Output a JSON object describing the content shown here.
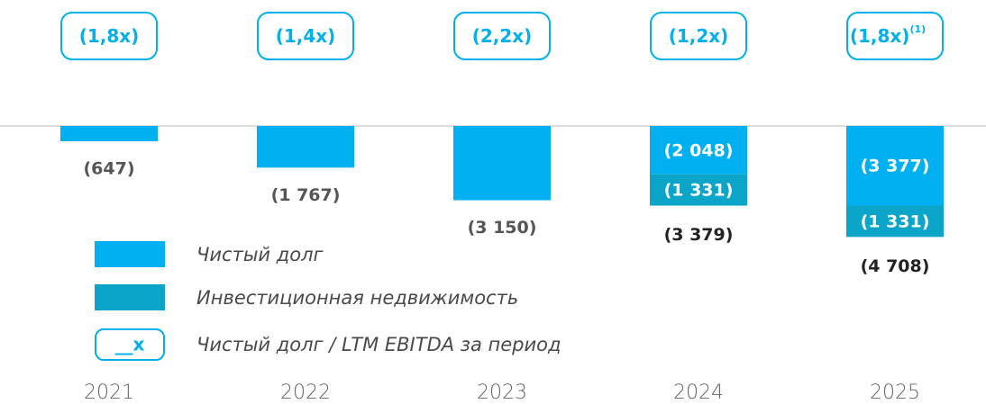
{
  "chart_data": {
    "type": "stacked_bar",
    "categories": [
      "2021",
      "2022",
      "2023",
      "2024",
      "2025"
    ],
    "series": [
      {
        "name": "Чистый долг",
        "color": "#00b0f0",
        "values": [
          -647,
          -1767,
          -3150,
          -2048,
          -3377
        ],
        "value_labels": [
          "(647)",
          "(1 767)",
          "(3 150)",
          "(2 048)",
          "(3 377)"
        ]
      },
      {
        "name": "Инвестиционная недвижимость",
        "color": "#0aa5c8",
        "values": [
          null,
          null,
          null,
          -1331,
          -1331
        ],
        "value_labels": [
          null,
          null,
          null,
          "(1 331)",
          "(1 331)"
        ]
      }
    ],
    "totals": [
      null,
      null,
      null,
      -3379,
      -4708
    ],
    "total_labels": [
      null,
      null,
      null,
      "(3 379)",
      "(4 708)"
    ],
    "ratios": [
      {
        "value": 1.8,
        "label": "(1,8x)"
      },
      {
        "value": 1.4,
        "label": "(1,4x)"
      },
      {
        "value": 2.2,
        "label": "(2,2x)"
      },
      {
        "value": 1.2,
        "label": "(1,2x)"
      },
      {
        "value": 1.8,
        "label": "(1,8x)"
      }
    ],
    "ratio_footnotes": [
      null,
      null,
      null,
      null,
      "(1)"
    ],
    "ratio_legend": {
      "sample": "__x",
      "label": "Чистый долг / LTM EBITDA за период"
    },
    "ratio_color": "#00b0e8",
    "ylim": [
      -5000,
      0
    ]
  }
}
